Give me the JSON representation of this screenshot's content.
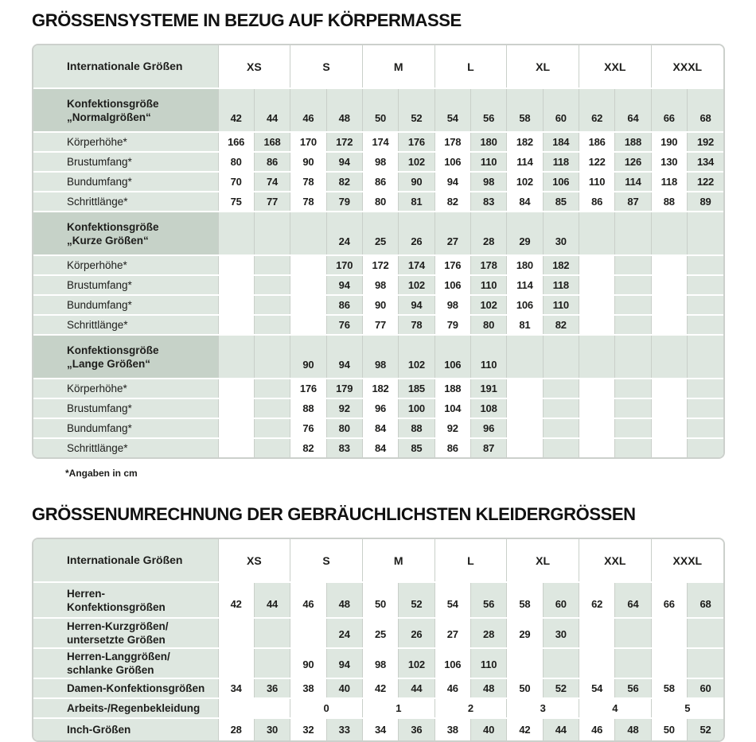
{
  "colors": {
    "green_light": "#dee7e0",
    "green_dark": "#c6d2c8",
    "grid_line": "#c9cfc9",
    "text": "#1d1d1b"
  },
  "table1": {
    "title": "GRÖSSENSYSTEME IN BEZUG AUF KÖRPERMASSE",
    "footnote": "*Angaben in cm",
    "header": {
      "label": "Internationale Größen",
      "groups": [
        "XS",
        "S",
        "M",
        "L",
        "XL",
        "XXL",
        "XXXL"
      ]
    },
    "sections": [
      {
        "label_lines": [
          "Konfektionsgröße",
          "„Normalgrößen“"
        ],
        "sizes": [
          "42",
          "44",
          "46",
          "48",
          "50",
          "52",
          "54",
          "56",
          "58",
          "60",
          "62",
          "64",
          "66",
          "68"
        ],
        "rows": [
          {
            "label": "Körperhöhe*",
            "values": [
              "166",
              "168",
              "170",
              "172",
              "174",
              "176",
              "178",
              "180",
              "182",
              "184",
              "186",
              "188",
              "190",
              "192"
            ]
          },
          {
            "label": "Brustumfang*",
            "values": [
              "80",
              "86",
              "90",
              "94",
              "98",
              "102",
              "106",
              "110",
              "114",
              "118",
              "122",
              "126",
              "130",
              "134"
            ]
          },
          {
            "label": "Bundumfang*",
            "values": [
              "70",
              "74",
              "78",
              "82",
              "86",
              "90",
              "94",
              "98",
              "102",
              "106",
              "110",
              "114",
              "118",
              "122"
            ]
          },
          {
            "label": "Schrittlänge*",
            "values": [
              "75",
              "77",
              "78",
              "79",
              "80",
              "81",
              "82",
              "83",
              "84",
              "85",
              "86",
              "87",
              "88",
              "89"
            ]
          }
        ]
      },
      {
        "label_lines": [
          "Konfektionsgröße",
          "„Kurze Größen“"
        ],
        "sizes": [
          "",
          "",
          "",
          "24",
          "25",
          "26",
          "27",
          "28",
          "29",
          "30",
          "",
          "",
          "",
          ""
        ],
        "rows": [
          {
            "label": "Körperhöhe*",
            "values": [
              "",
              "",
              "",
              "170",
              "172",
              "174",
              "176",
              "178",
              "180",
              "182",
              "",
              "",
              "",
              ""
            ]
          },
          {
            "label": "Brustumfang*",
            "values": [
              "",
              "",
              "",
              "94",
              "98",
              "102",
              "106",
              "110",
              "114",
              "118",
              "",
              "",
              "",
              ""
            ]
          },
          {
            "label": "Bundumfang*",
            "values": [
              "",
              "",
              "",
              "86",
              "90",
              "94",
              "98",
              "102",
              "106",
              "110",
              "",
              "",
              "",
              ""
            ]
          },
          {
            "label": "Schrittlänge*",
            "values": [
              "",
              "",
              "",
              "76",
              "77",
              "78",
              "79",
              "80",
              "81",
              "82",
              "",
              "",
              "",
              ""
            ]
          }
        ]
      },
      {
        "label_lines": [
          "Konfektionsgröße",
          "„Lange Größen“"
        ],
        "sizes": [
          "",
          "",
          "90",
          "94",
          "98",
          "102",
          "106",
          "110",
          "",
          "",
          "",
          "",
          "",
          ""
        ],
        "rows": [
          {
            "label": "Körperhöhe*",
            "values": [
              "",
              "",
              "176",
              "179",
              "182",
              "185",
              "188",
              "191",
              "",
              "",
              "",
              "",
              "",
              ""
            ]
          },
          {
            "label": "Brustumfang*",
            "values": [
              "",
              "",
              "88",
              "92",
              "96",
              "100",
              "104",
              "108",
              "",
              "",
              "",
              "",
              "",
              ""
            ]
          },
          {
            "label": "Bundumfang*",
            "values": [
              "",
              "",
              "76",
              "80",
              "84",
              "88",
              "92",
              "96",
              "",
              "",
              "",
              "",
              "",
              ""
            ]
          },
          {
            "label": "Schrittlänge*",
            "values": [
              "",
              "",
              "82",
              "83",
              "84",
              "85",
              "86",
              "87",
              "",
              "",
              "",
              "",
              "",
              ""
            ]
          }
        ]
      }
    ]
  },
  "table2": {
    "title": "GRÖSSENUMRECHNUNG DER GEBRÄUCHLICHSTEN KLEIDERGRÖSSEN",
    "header": {
      "label": "Internationale Größen",
      "groups": [
        "XS",
        "S",
        "M",
        "L",
        "XL",
        "XXL",
        "XXXL"
      ]
    },
    "rows": [
      {
        "label_lines": [
          "Herren-",
          "Konfektionsgrößen"
        ],
        "values": [
          "42",
          "44",
          "46",
          "48",
          "50",
          "52",
          "54",
          "56",
          "58",
          "60",
          "62",
          "64",
          "66",
          "68"
        ]
      },
      {
        "label_lines": [
          "Herren-Kurzgrößen/",
          "untersetzte Größen"
        ],
        "values": [
          "",
          "",
          "",
          "24",
          "25",
          "26",
          "27",
          "28",
          "29",
          "30",
          "",
          "",
          "",
          ""
        ]
      },
      {
        "label_lines": [
          "Herren-Langgrößen/",
          "schlanke Größen"
        ],
        "values": [
          "",
          "",
          "90",
          "94",
          "98",
          "102",
          "106",
          "110",
          "",
          "",
          "",
          "",
          "",
          ""
        ]
      },
      {
        "label_lines": [
          "Damen-Konfektionsgrößen"
        ],
        "values": [
          "34",
          "36",
          "38",
          "40",
          "42",
          "44",
          "46",
          "48",
          "50",
          "52",
          "54",
          "56",
          "58",
          "60"
        ]
      },
      {
        "label_lines": [
          "Arbeits-/Regenbekleidung"
        ],
        "merged_values": [
          "",
          "0",
          "1",
          "2",
          "3",
          "4",
          "5"
        ]
      },
      {
        "label_lines": [
          "Inch-Größen"
        ],
        "values": [
          "28",
          "30",
          "32",
          "33",
          "34",
          "36",
          "38",
          "40",
          "42",
          "44",
          "46",
          "48",
          "50",
          "52"
        ]
      }
    ]
  }
}
